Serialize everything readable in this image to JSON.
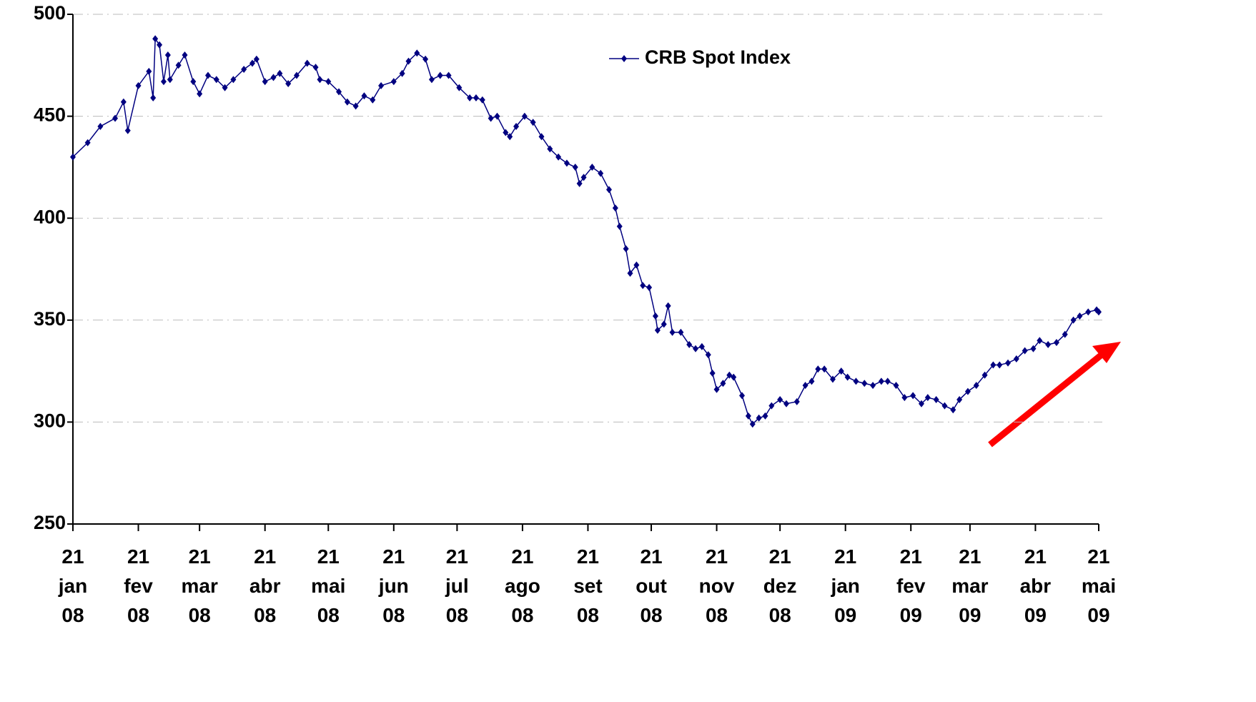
{
  "chart_data": {
    "type": "line",
    "x": [
      "2008-01-21",
      "2008-01-28",
      "2008-02-03",
      "2008-02-10",
      "2008-02-14",
      "2008-02-16",
      "2008-02-21",
      "2008-02-26",
      "2008-02-28",
      "2008-02-29",
      "2008-03-02",
      "2008-03-04",
      "2008-03-06",
      "2008-03-07",
      "2008-03-11",
      "2008-03-14",
      "2008-03-18",
      "2008-03-21",
      "2008-03-25",
      "2008-03-29",
      "2008-04-02",
      "2008-04-06",
      "2008-04-11",
      "2008-04-15",
      "2008-04-17",
      "2008-04-21",
      "2008-04-25",
      "2008-04-28",
      "2008-05-02",
      "2008-05-06",
      "2008-05-11",
      "2008-05-15",
      "2008-05-17",
      "2008-05-21",
      "2008-05-26",
      "2008-05-30",
      "2008-06-03",
      "2008-06-07",
      "2008-06-11",
      "2008-06-15",
      "2008-06-21",
      "2008-06-25",
      "2008-06-28",
      "2008-07-02",
      "2008-07-06",
      "2008-07-09",
      "2008-07-13",
      "2008-07-17",
      "2008-07-22",
      "2008-07-27",
      "2008-07-30",
      "2008-08-02",
      "2008-08-06",
      "2008-08-09",
      "2008-08-13",
      "2008-08-15",
      "2008-08-18",
      "2008-08-22",
      "2008-08-26",
      "2008-08-30",
      "2008-09-03",
      "2008-09-07",
      "2008-09-11",
      "2008-09-15",
      "2008-09-17",
      "2008-09-19",
      "2008-09-23",
      "2008-09-27",
      "2008-10-01",
      "2008-10-04",
      "2008-10-06",
      "2008-10-09",
      "2008-10-11",
      "2008-10-14",
      "2008-10-17",
      "2008-10-20",
      "2008-10-23",
      "2008-10-24",
      "2008-10-27",
      "2008-10-29",
      "2008-10-31",
      "2008-11-04",
      "2008-11-08",
      "2008-11-11",
      "2008-11-14",
      "2008-11-17",
      "2008-11-19",
      "2008-11-21",
      "2008-11-24",
      "2008-11-27",
      "2008-11-29",
      "2008-12-03",
      "2008-12-06",
      "2008-12-08",
      "2008-12-11",
      "2008-12-14",
      "2008-12-17",
      "2008-12-21",
      "2008-12-24",
      "2008-12-29",
      "2009-01-02",
      "2009-01-05",
      "2009-01-08",
      "2009-01-11",
      "2009-01-15",
      "2009-01-19",
      "2009-01-22",
      "2009-01-26",
      "2009-01-30",
      "2009-02-03",
      "2009-02-07",
      "2009-02-10",
      "2009-02-14",
      "2009-02-18",
      "2009-02-22",
      "2009-02-26",
      "2009-03-01",
      "2009-03-05",
      "2009-03-09",
      "2009-03-13",
      "2009-03-16",
      "2009-03-20",
      "2009-03-24",
      "2009-03-28",
      "2009-04-01",
      "2009-04-04",
      "2009-04-08",
      "2009-04-12",
      "2009-04-16",
      "2009-04-20",
      "2009-04-23",
      "2009-04-27",
      "2009-05-01",
      "2009-05-05",
      "2009-05-09",
      "2009-05-12",
      "2009-05-16",
      "2009-05-20",
      "2009-05-21"
    ],
    "series": [
      {
        "name": "CRB Spot Index",
        "color": "#000080",
        "values": [
          430,
          437,
          445,
          449,
          457,
          443,
          465,
          472,
          459,
          488,
          485,
          467,
          480,
          468,
          475,
          480,
          467,
          461,
          470,
          468,
          464,
          468,
          473,
          476,
          478,
          467,
          469,
          471,
          466,
          470,
          476,
          474,
          468,
          467,
          462,
          457,
          455,
          460,
          458,
          465,
          467,
          471,
          477,
          481,
          478,
          468,
          470,
          470,
          464,
          459,
          459,
          458,
          449,
          450,
          442,
          440,
          445,
          450,
          447,
          440,
          434,
          430,
          427,
          425,
          417,
          420,
          425,
          422,
          414,
          405,
          396,
          385,
          373,
          377,
          367,
          366,
          352,
          345,
          348,
          357,
          344,
          344,
          338,
          336,
          337,
          333,
          324,
          316,
          319,
          323,
          322,
          313,
          303,
          299,
          302,
          303,
          308,
          311,
          309,
          310,
          318,
          320,
          326,
          326,
          321,
          325,
          322,
          320,
          319,
          318,
          320,
          320,
          318,
          312,
          313,
          309,
          312,
          311,
          308,
          306,
          311,
          315,
          318,
          323,
          328,
          328,
          329,
          331,
          335,
          336,
          340,
          338,
          339,
          343,
          350,
          352,
          354,
          355,
          354
        ]
      }
    ],
    "xlim": [
      "2008-01-21",
      "2009-05-21"
    ],
    "xticks": [
      {
        "value": "2008-01-21",
        "label": "21 jan 08"
      },
      {
        "value": "2008-02-21",
        "label": "21 fev 08"
      },
      {
        "value": "2008-03-21",
        "label": "21 mar 08"
      },
      {
        "value": "2008-04-21",
        "label": "21 abr 08"
      },
      {
        "value": "2008-05-21",
        "label": "21 mai 08"
      },
      {
        "value": "2008-06-21",
        "label": "21 jun 08"
      },
      {
        "value": "2008-07-21",
        "label": "21 jul 08"
      },
      {
        "value": "2008-08-21",
        "label": "21 ago 08"
      },
      {
        "value": "2008-09-21",
        "label": "21 set 08"
      },
      {
        "value": "2008-10-21",
        "label": "21 out 08"
      },
      {
        "value": "2008-11-21",
        "label": "21 nov 08"
      },
      {
        "value": "2008-12-21",
        "label": "21 dez 08"
      },
      {
        "value": "2009-01-21",
        "label": "21 jan 09"
      },
      {
        "value": "2009-02-21",
        "label": "21 fev 09"
      },
      {
        "value": "2009-03-21",
        "label": "21 mar 09"
      },
      {
        "value": "2009-04-21",
        "label": "21 abr 09"
      },
      {
        "value": "2009-05-21",
        "label": "21 mai 09"
      }
    ],
    "ylim": [
      250,
      500
    ],
    "yticks": [
      250,
      300,
      350,
      400,
      450,
      500
    ],
    "grid": true,
    "legend": "top"
  }
}
